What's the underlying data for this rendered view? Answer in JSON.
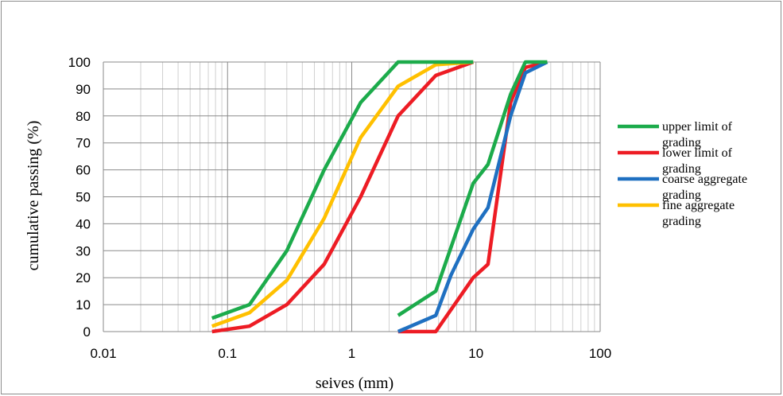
{
  "chart_data": {
    "type": "line",
    "x_scale": "log",
    "xlim": [
      0.01,
      100
    ],
    "ylim": [
      0,
      100
    ],
    "xlabel": "seives (mm)",
    "ylabel": "cumulative passing (%)",
    "x_ticks": [
      "0.01",
      "0.1",
      "1",
      "10",
      "100"
    ],
    "y_ticks": [
      "0",
      "10",
      "20",
      "30",
      "40",
      "50",
      "60",
      "70",
      "80",
      "90",
      "100"
    ],
    "grid": true,
    "legend": "right",
    "series": [
      {
        "name": "upper limit of grading",
        "color": "#1cab4b",
        "segments": [
          [
            [
              0.075,
              5
            ],
            [
              0.15,
              10
            ],
            [
              0.3,
              30
            ],
            [
              0.6,
              60
            ],
            [
              1.18,
              85
            ],
            [
              2.36,
              100
            ],
            [
              4.75,
              100
            ],
            [
              9.5,
              100
            ]
          ],
          [
            [
              2.36,
              6
            ],
            [
              4.75,
              15
            ],
            [
              9.5,
              55
            ],
            [
              12.5,
              62
            ],
            [
              19,
              88
            ],
            [
              25,
              100
            ],
            [
              37.5,
              100
            ]
          ]
        ]
      },
      {
        "name": "lower limit of grading",
        "color": "#ed1c24",
        "segments": [
          [
            [
              0.075,
              0
            ],
            [
              0.15,
              2
            ],
            [
              0.3,
              10
            ],
            [
              0.6,
              25
            ],
            [
              1.18,
              50
            ],
            [
              2.36,
              80
            ],
            [
              4.75,
              95
            ],
            [
              9.5,
              100
            ]
          ],
          [
            [
              2.36,
              0
            ],
            [
              4.75,
              0
            ],
            [
              9.5,
              20
            ],
            [
              12.5,
              25
            ],
            [
              19,
              85
            ],
            [
              25,
              98
            ],
            [
              37.5,
              100
            ]
          ]
        ]
      },
      {
        "name": "coarse aggregate grading",
        "color": "#1f70c1",
        "segments": [
          [
            [
              2.36,
              0
            ],
            [
              4.75,
              6
            ],
            [
              6.3,
              21
            ],
            [
              9.5,
              38
            ],
            [
              12.5,
              46
            ],
            [
              19,
              80
            ],
            [
              25,
              96
            ],
            [
              37.5,
              100
            ]
          ]
        ]
      },
      {
        "name": "fine aggregate grading",
        "color": "#ffc000",
        "segments": [
          [
            [
              0.075,
              2
            ],
            [
              0.15,
              7
            ],
            [
              0.3,
              19
            ],
            [
              0.6,
              42
            ],
            [
              1.18,
              72
            ],
            [
              2.36,
              91
            ],
            [
              4.75,
              99
            ],
            [
              9.5,
              100
            ]
          ]
        ]
      }
    ],
    "legend_entries": [
      {
        "line1": "upper limit of",
        "line2": "grading",
        "color": "#1cab4b"
      },
      {
        "line1": "lower limit of",
        "line2": "grading",
        "color": "#ed1c24"
      },
      {
        "line1": "coarse aggregate",
        "line2": "grading",
        "color": "#1f70c1"
      },
      {
        "line1": "fine aggregate",
        "line2": "grading",
        "color": "#ffc000"
      }
    ]
  }
}
